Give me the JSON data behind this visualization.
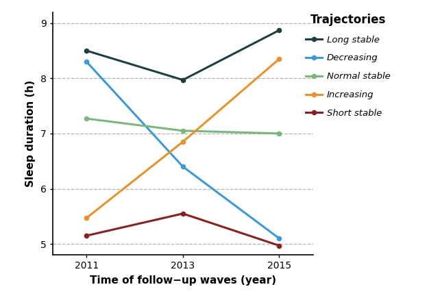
{
  "years": [
    2011,
    2013,
    2015
  ],
  "series": {
    "Long stable": {
      "values": [
        8.5,
        7.97,
        8.87
      ],
      "color": "#1c3f3f",
      "marker": "o"
    },
    "Decreasing": {
      "values": [
        8.3,
        6.4,
        5.1
      ],
      "color": "#3a9ad9",
      "marker": "o"
    },
    "Normal stable": {
      "values": [
        7.27,
        7.05,
        7.0
      ],
      "color": "#7ab87a",
      "marker": "o"
    },
    "Increasing": {
      "values": [
        5.47,
        6.85,
        8.35
      ],
      "color": "#e8922a",
      "marker": "o"
    },
    "Short stable": {
      "values": [
        5.15,
        5.55,
        4.97
      ],
      "color": "#8b2020",
      "marker": "o"
    }
  },
  "xlabel": "Time of follow−up waves (year)",
  "ylabel": "Sleep duration (h)",
  "legend_title": "Trajectories",
  "xlim": [
    2010.3,
    2015.7
  ],
  "ylim": [
    4.8,
    9.2
  ],
  "yticks": [
    5,
    6,
    7,
    8,
    9
  ],
  "xticks": [
    2011,
    2013,
    2015
  ],
  "background_color": "#ffffff",
  "grid_color": "#aaaaaa"
}
